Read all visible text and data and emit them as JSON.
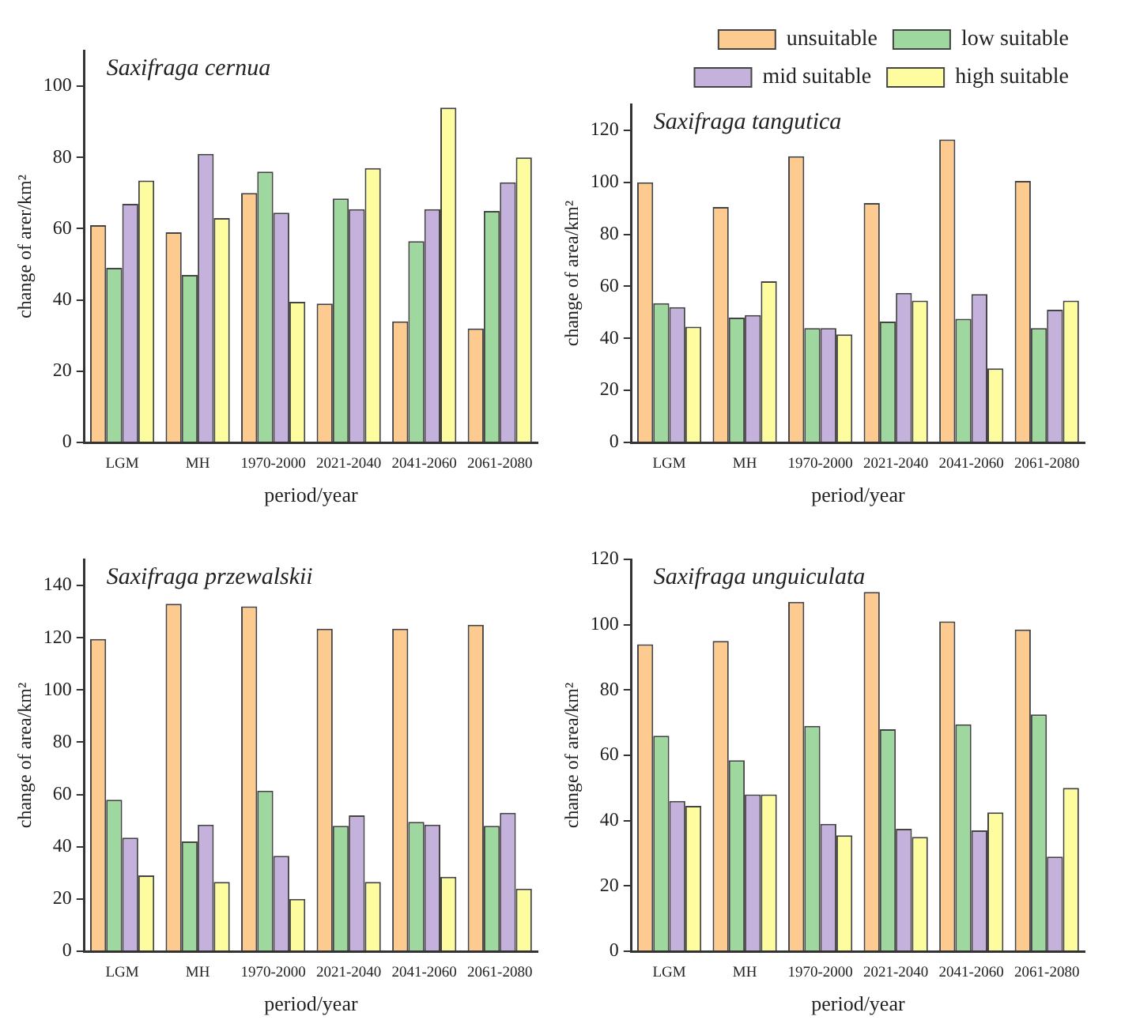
{
  "chart_data": [
    {
      "type": "bar",
      "title": "Saxifraga cernua",
      "xlabel": "period/year",
      "ylabel": "change of arer/km²",
      "categories": [
        "LGM",
        "MH",
        "1970-2000",
        "2021-2040",
        "2041-2060",
        "2061-2080"
      ],
      "ylim": [
        0,
        110
      ],
      "yticks": [
        0,
        20,
        40,
        60,
        80,
        100
      ],
      "grid": false,
      "legend": false,
      "series": [
        {
          "color": "#fdca8f",
          "values": [
            61,
            59,
            70,
            39,
            34,
            32
          ]
        },
        {
          "color": "#9fd89f",
          "values": [
            49,
            47,
            76,
            68.5,
            56.5,
            65
          ]
        },
        {
          "color": "#c4b2dd",
          "values": [
            67,
            81,
            64.5,
            65.5,
            65.5,
            73
          ]
        },
        {
          "color": "#fdfd9f",
          "values": [
            73.5,
            63,
            39.5,
            77,
            94,
            80
          ]
        }
      ]
    },
    {
      "type": "bar",
      "title": "Saxifraga tangutica",
      "xlabel": "period/year",
      "ylabel": "change of area/km²",
      "categories": [
        "LGM",
        "MH",
        "1970-2000",
        "2021-2040",
        "2041-2060",
        "2061-2080"
      ],
      "ylim": [
        0,
        130
      ],
      "yticks": [
        0,
        20,
        40,
        60,
        80,
        100,
        120
      ],
      "grid": false,
      "legend": "top right",
      "series": [
        {
          "name": "unsuitable",
          "color": "#fdca8f",
          "values": [
            100,
            90.5,
            110,
            92,
            116.5,
            100.5
          ]
        },
        {
          "name": "low suitable",
          "color": "#9fd89f",
          "values": [
            53.5,
            48,
            44,
            46.5,
            47.5,
            44
          ]
        },
        {
          "name": "mid suitable",
          "color": "#c4b2dd",
          "values": [
            52,
            49,
            44,
            57.5,
            57,
            51
          ]
        },
        {
          "name": "high suitable",
          "color": "#fdfd9f",
          "values": [
            44.5,
            62,
            41.5,
            54.5,
            28.5,
            54.5
          ]
        }
      ]
    },
    {
      "type": "bar",
      "title": "Saxifraga przewalskii",
      "xlabel": "period/year",
      "ylabel": "change of area/km²",
      "categories": [
        "LGM",
        "MH",
        "1970-2000",
        "2021-2040",
        "2041-2060",
        "2061-2080"
      ],
      "ylim": [
        0,
        150
      ],
      "yticks": [
        0,
        20,
        40,
        60,
        80,
        100,
        120,
        140
      ],
      "grid": false,
      "legend": false,
      "series": [
        {
          "color": "#fdca8f",
          "values": [
            119.5,
            133,
            132,
            123.5,
            123.5,
            125
          ]
        },
        {
          "color": "#9fd89f",
          "values": [
            58,
            42,
            61.5,
            48,
            49.5,
            48
          ]
        },
        {
          "color": "#c4b2dd",
          "values": [
            43.5,
            48.5,
            36.5,
            52,
            48.5,
            53
          ]
        },
        {
          "color": "#fdfd9f",
          "values": [
            29,
            26.5,
            20,
            26.5,
            28.5,
            24
          ]
        }
      ]
    },
    {
      "type": "bar",
      "title": "Saxifraga unguiculata",
      "xlabel": "period/year",
      "ylabel": "change of area/km²",
      "categories": [
        "LGM",
        "MH",
        "1970-2000",
        "2021-2040",
        "2041-2060",
        "2061-2080"
      ],
      "ylim": [
        0,
        120
      ],
      "yticks": [
        0,
        20,
        40,
        60,
        80,
        100,
        120
      ],
      "grid": false,
      "legend": false,
      "series": [
        {
          "color": "#fdca8f",
          "values": [
            94,
            95,
            107,
            110,
            101,
            98.5
          ]
        },
        {
          "color": "#9fd89f",
          "values": [
            66,
            58.5,
            69,
            68,
            69.5,
            72.5
          ]
        },
        {
          "color": "#c4b2dd",
          "values": [
            46,
            48,
            39,
            37.5,
            37,
            29
          ]
        },
        {
          "color": "#fdfd9f",
          "values": [
            44.5,
            48,
            35.5,
            35,
            42.5,
            50
          ]
        }
      ]
    }
  ]
}
